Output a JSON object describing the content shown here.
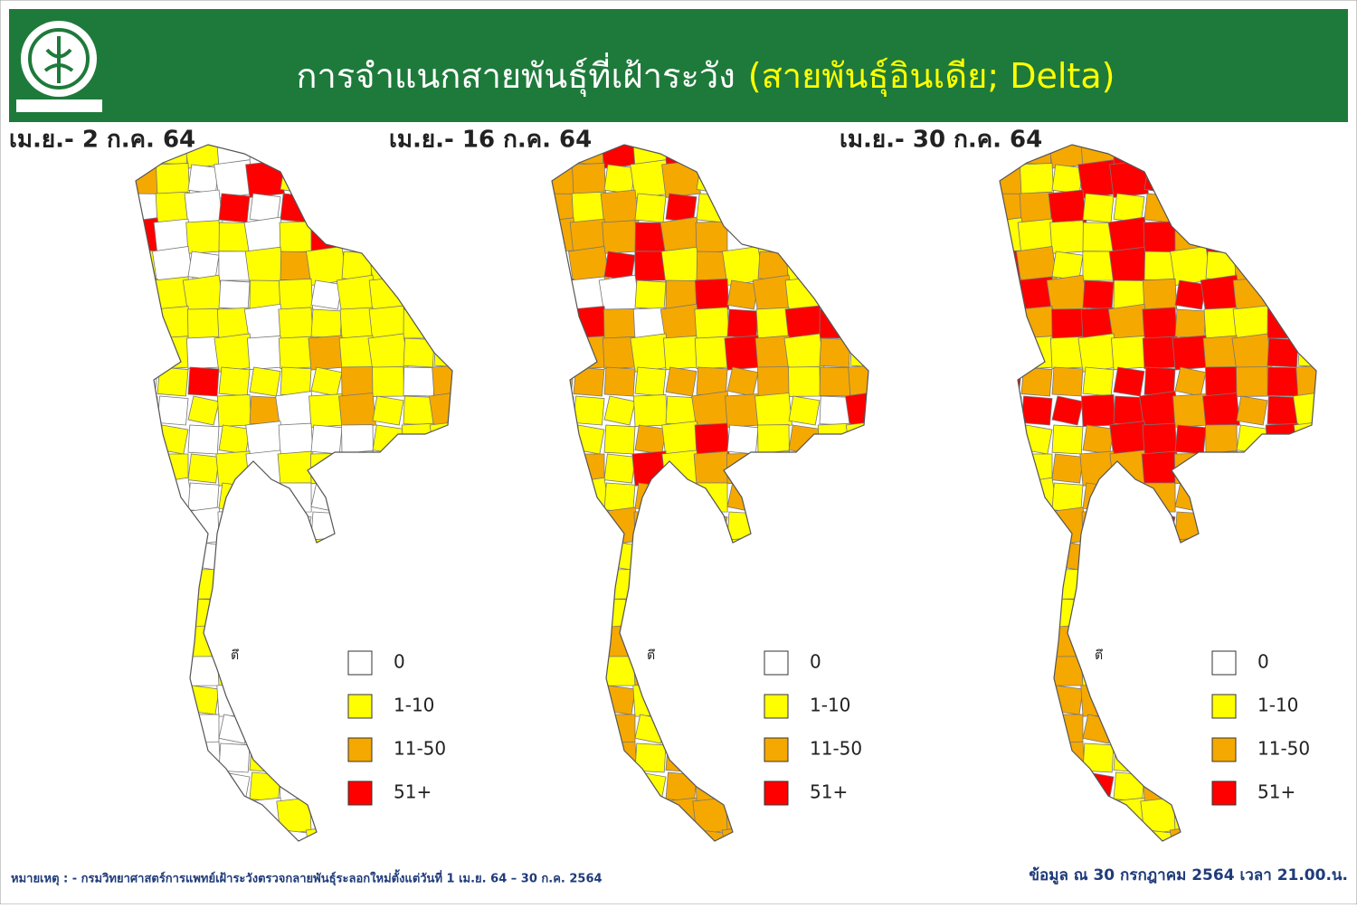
{
  "header": {
    "title": "การจำแนกสายพันธุ์ที่เฝ้าระวัง",
    "title_highlight": "(สายพันธุ์อินเดีย; Delta)"
  },
  "panels": [
    {
      "title": "เม.ย.- 2 ก.ค. 64"
    },
    {
      "title": "เม.ย.- 16 ก.ค. 64"
    },
    {
      "title": "เม.ย.- 30 ก.ค. 64"
    }
  ],
  "island_label": "ตึ",
  "legend": [
    {
      "label": "0",
      "color": "#ffffff"
    },
    {
      "label": "1-10",
      "color": "#ffff00"
    },
    {
      "label": "11-50",
      "color": "#f5a800"
    },
    {
      "label": "51+",
      "color": "#ff0000"
    }
  ],
  "footer": {
    "note": "หมายเหตุ : - กรมวิทยาศาสตร์การแพทย์เฝ้าระวังตรวจกลายพันธุ์ระลอกใหม่ตั้งแต่วันที่ 1 เม.ย. 64 – 30 ก.ค. 2564",
    "data_as_of": "ข้อมูล ณ 30 กรกฎาคม 2564 เวลา 21.00.น."
  }
}
